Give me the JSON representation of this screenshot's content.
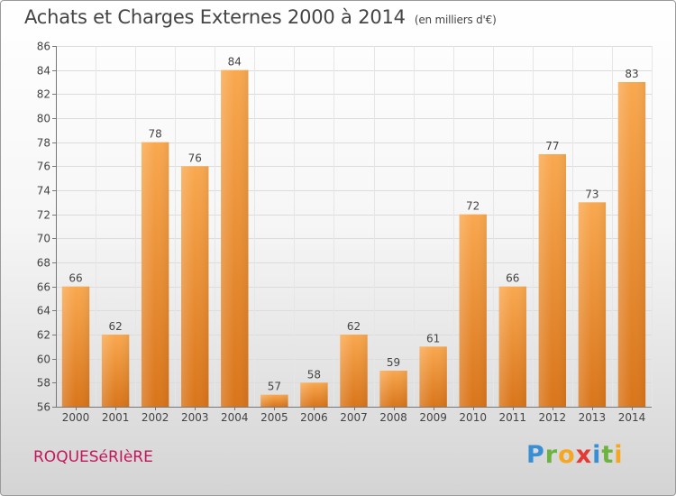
{
  "header": {
    "title": "Achats et Charges Externes 2000 à 2014",
    "unit": "(en milliers d'€)"
  },
  "footer": {
    "town": "ROQUESéRIèRE",
    "logo_letters": [
      "P",
      "r",
      "o",
      "x",
      "i",
      "t",
      "i"
    ]
  },
  "colors": {
    "bar_top": "#f9a84f",
    "bar_bottom": "#d9751a",
    "text": "#444444",
    "town": "#c2185b"
  },
  "chart_data": {
    "type": "bar",
    "title": "Achats et Charges Externes 2000 à 2014",
    "subtitle": "(en milliers d'€)",
    "categories": [
      "2000",
      "2001",
      "2002",
      "2003",
      "2004",
      "2005",
      "2006",
      "2007",
      "2008",
      "2009",
      "2010",
      "2011",
      "2012",
      "2013",
      "2014"
    ],
    "values": [
      66,
      62,
      78,
      76,
      84,
      57,
      58,
      62,
      59,
      61,
      72,
      66,
      77,
      73,
      83
    ],
    "ylim": [
      56,
      86
    ],
    "yticks": [
      56,
      58,
      60,
      62,
      64,
      66,
      68,
      70,
      72,
      74,
      76,
      78,
      80,
      82,
      84,
      86
    ],
    "grid": true,
    "data_labels": true
  }
}
